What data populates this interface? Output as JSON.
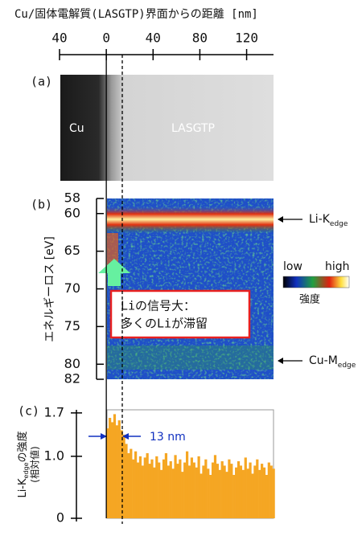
{
  "title": "Cu/固体電解質(LASGTP)界面からの距離 [nm]",
  "x_axis": {
    "xlim": [
      -40,
      143
    ],
    "xticks": [
      {
        "value": -40,
        "label": "40"
      },
      0,
      40,
      80,
      120
    ]
  },
  "panel_a": {
    "label": "(a)",
    "regions": [
      "Cu",
      "LASGTP"
    ]
  },
  "panel_b": {
    "label": "(b)",
    "ylabel": "エネルギーロス [eV]",
    "ylim": [
      58,
      82
    ],
    "yticks": [
      58,
      60,
      65,
      70,
      75,
      80,
      82
    ],
    "annotations": [
      {
        "main": "Li-K",
        "sub": "edge"
      },
      {
        "main": "Cu-M",
        "sub": "edge"
      }
    ],
    "colorbar": {
      "low": "low",
      "high": "high",
      "title": "強度"
    },
    "callout": [
      "Liの信号大：",
      "多くのLiが滞留"
    ]
  },
  "chart_data": {
    "type": "bar",
    "label": "(c)",
    "ylabel": {
      "main": "Li-K",
      "sub": "edge",
      "rest": "の強度",
      "line2": "(相対値)"
    },
    "annotation": "13 nm",
    "color": "#f5a623",
    "ylim": [
      0,
      1.75
    ],
    "yticks": [
      0,
      {
        "value": 1,
        "label": "1.0"
      },
      1.7
    ],
    "x": [
      0,
      2,
      4,
      6,
      8,
      10,
      12,
      14,
      16,
      18,
      20,
      22,
      24,
      26,
      28,
      30,
      32,
      34,
      36,
      38,
      40,
      42,
      44,
      46,
      48,
      50,
      52,
      54,
      56,
      58,
      60,
      62,
      64,
      66,
      68,
      70,
      72,
      74,
      76,
      78,
      80,
      82,
      84,
      86,
      88,
      90,
      92,
      94,
      96,
      98,
      100,
      102,
      104,
      106,
      108,
      110,
      112,
      114,
      116,
      118,
      120,
      122,
      124,
      126,
      128,
      130,
      132,
      134,
      136,
      138,
      140,
      142
    ],
    "values": [
      1.45,
      1.62,
      1.55,
      1.68,
      1.5,
      1.58,
      1.42,
      1.35,
      1.2,
      1.05,
      1.12,
      0.95,
      1.08,
      0.9,
      1.0,
      0.85,
      0.98,
      1.05,
      0.88,
      0.95,
      0.82,
      1.0,
      0.9,
      0.78,
      0.95,
      1.05,
      0.85,
      0.92,
      0.8,
      1.02,
      0.88,
      0.95,
      0.75,
      0.9,
      1.08,
      0.85,
      0.98,
      0.9,
      0.82,
      1.0,
      0.72,
      0.85,
      0.95,
      0.8,
      0.7,
      0.9,
      1.02,
      0.88,
      0.78,
      0.92,
      0.85,
      0.75,
      0.95,
      0.88,
      0.7,
      0.82,
      0.92,
      0.85,
      0.78,
      0.98,
      0.8,
      0.9,
      0.72,
      0.85,
      0.95,
      0.78,
      0.88,
      0.82,
      0.7,
      0.9,
      0.85,
      0.8
    ]
  }
}
